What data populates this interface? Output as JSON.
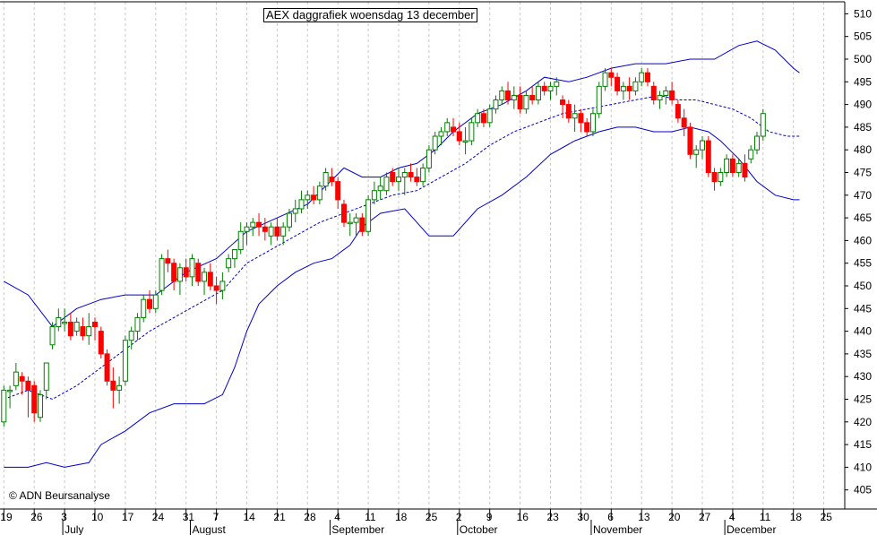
{
  "chart_data": {
    "type": "candlestick",
    "title": "AEX daggrafiek woensdag 13 december",
    "copyright": "© ADN Beursanalyse",
    "ylim": [
      400,
      512
    ],
    "y_ticks": [
      405,
      410,
      415,
      420,
      425,
      430,
      435,
      440,
      445,
      450,
      455,
      460,
      465,
      470,
      475,
      480,
      485,
      490,
      495,
      500,
      505,
      510
    ],
    "x_range": [
      0,
      131
    ],
    "week_ticks": [
      {
        "i": 0,
        "label": "19"
      },
      {
        "i": 5,
        "label": "26"
      },
      {
        "i": 10,
        "label": "3"
      },
      {
        "i": 15,
        "label": "10"
      },
      {
        "i": 20,
        "label": "17"
      },
      {
        "i": 25,
        "label": "24"
      },
      {
        "i": 30,
        "label": "31"
      },
      {
        "i": 35,
        "label": "7"
      },
      {
        "i": 40,
        "label": "14"
      },
      {
        "i": 45,
        "label": "21"
      },
      {
        "i": 50,
        "label": "28"
      },
      {
        "i": 55,
        "label": "4"
      },
      {
        "i": 60,
        "label": "11"
      },
      {
        "i": 65,
        "label": "18"
      },
      {
        "i": 70,
        "label": "25"
      },
      {
        "i": 75,
        "label": "2"
      },
      {
        "i": 80,
        "label": "9"
      },
      {
        "i": 85,
        "label": "16"
      },
      {
        "i": 90,
        "label": "23"
      },
      {
        "i": 95,
        "label": "30"
      },
      {
        "i": 100,
        "label": "6"
      },
      {
        "i": 105,
        "label": "13"
      },
      {
        "i": 110,
        "label": "20"
      },
      {
        "i": 115,
        "label": "27"
      },
      {
        "i": 120,
        "label": "4"
      },
      {
        "i": 125,
        "label": "11"
      },
      {
        "i": 130,
        "label": "18"
      },
      {
        "i": 135,
        "label": "25"
      }
    ],
    "months": [
      {
        "i": 10,
        "label": "July"
      },
      {
        "i": 31,
        "label": "August"
      },
      {
        "i": 54,
        "label": "September"
      },
      {
        "i": 75,
        "label": "October"
      },
      {
        "i": 97,
        "label": "November"
      },
      {
        "i": 119,
        "label": "December"
      }
    ],
    "candles": [
      [
        420,
        428,
        419,
        427
      ],
      [
        427,
        428,
        423,
        427
      ],
      [
        428,
        433,
        427,
        431
      ],
      [
        430,
        431,
        426,
        429
      ],
      [
        429,
        430,
        421,
        427
      ],
      [
        428,
        429,
        420,
        422
      ],
      [
        421,
        427,
        420,
        426
      ],
      [
        427,
        433,
        425,
        433
      ],
      [
        437,
        442,
        436,
        441
      ],
      [
        441,
        445,
        440,
        443
      ],
      [
        442,
        445,
        440,
        442
      ],
      [
        442,
        444,
        438,
        439
      ],
      [
        440,
        443,
        439,
        442
      ],
      [
        441,
        443,
        438,
        439
      ],
      [
        439,
        444,
        437,
        441
      ],
      [
        442,
        443,
        438,
        441
      ],
      [
        440,
        441,
        434,
        435
      ],
      [
        435,
        436,
        428,
        429
      ],
      [
        429,
        432,
        423,
        427
      ],
      [
        427,
        430,
        424,
        428
      ],
      [
        429,
        439,
        428,
        438
      ],
      [
        438,
        441,
        436,
        440
      ],
      [
        440,
        444,
        438,
        443
      ],
      [
        443,
        448,
        442,
        447
      ],
      [
        447,
        449,
        444,
        445
      ],
      [
        445,
        449,
        444,
        448
      ],
      [
        449,
        457,
        448,
        456
      ],
      [
        456,
        458,
        453,
        455
      ],
      [
        455,
        456,
        449,
        451
      ],
      [
        451,
        455,
        448,
        454
      ],
      [
        454,
        456,
        451,
        452
      ],
      [
        452,
        457,
        450,
        456
      ],
      [
        455,
        456,
        450,
        451
      ],
      [
        451,
        454,
        448,
        453
      ],
      [
        453,
        455,
        449,
        450
      ],
      [
        450,
        452,
        446,
        449
      ],
      [
        449,
        453,
        447,
        451
      ],
      [
        454,
        457,
        453,
        456
      ],
      [
        456,
        458,
        454,
        458
      ],
      [
        458,
        464,
        457,
        462
      ],
      [
        462,
        464,
        459,
        463
      ],
      [
        463,
        465,
        461,
        464
      ],
      [
        464,
        466,
        461,
        463
      ],
      [
        463,
        465,
        460,
        462
      ],
      [
        461,
        464,
        459,
        463
      ],
      [
        463,
        465,
        460,
        461
      ],
      [
        461,
        464,
        459,
        463
      ],
      [
        463,
        467,
        462,
        466
      ],
      [
        466,
        469,
        464,
        467
      ],
      [
        467,
        471,
        466,
        469
      ],
      [
        469,
        471,
        467,
        470
      ],
      [
        470,
        472,
        468,
        469
      ],
      [
        469,
        473,
        468,
        472
      ],
      [
        472,
        476,
        471,
        475
      ],
      [
        474,
        476,
        472,
        473
      ],
      [
        473,
        474,
        467,
        469
      ],
      [
        468,
        469,
        463,
        464
      ],
      [
        464,
        466,
        461,
        464
      ],
      [
        464,
        466,
        461,
        465
      ],
      [
        465,
        466,
        461,
        462
      ],
      [
        462,
        470,
        461,
        469
      ],
      [
        469,
        473,
        468,
        471
      ],
      [
        471,
        474,
        469,
        472
      ],
      [
        471,
        475,
        470,
        474
      ],
      [
        475,
        476,
        472,
        473
      ],
      [
        473,
        476,
        471,
        474
      ],
      [
        474,
        476,
        470,
        475
      ],
      [
        475,
        477,
        473,
        474
      ],
      [
        474,
        476,
        472,
        473
      ],
      [
        473,
        477,
        472,
        476
      ],
      [
        476,
        481,
        475,
        480
      ],
      [
        480,
        484,
        479,
        483
      ],
      [
        483,
        485,
        481,
        484
      ],
      [
        484,
        487,
        483,
        486
      ],
      [
        485,
        487,
        483,
        484
      ],
      [
        484,
        486,
        481,
        482
      ],
      [
        482,
        485,
        479,
        482
      ],
      [
        482,
        487,
        481,
        486
      ],
      [
        486,
        489,
        485,
        488
      ],
      [
        488,
        489,
        485,
        486
      ],
      [
        486,
        490,
        485,
        489
      ],
      [
        489,
        492,
        488,
        491
      ],
      [
        491,
        494,
        490,
        493
      ],
      [
        493,
        495,
        490,
        491
      ],
      [
        491,
        494,
        489,
        492
      ],
      [
        492,
        494,
        488,
        489
      ],
      [
        489,
        493,
        488,
        492
      ],
      [
        492,
        494,
        490,
        491
      ],
      [
        491,
        495,
        490,
        494
      ],
      [
        494,
        495,
        492,
        493
      ],
      [
        493,
        495,
        491,
        494
      ],
      [
        494,
        496,
        492,
        495
      ],
      [
        491,
        492,
        487,
        490
      ],
      [
        490,
        491,
        486,
        487
      ],
      [
        487,
        490,
        484,
        488
      ],
      [
        488,
        489,
        484,
        486
      ],
      [
        486,
        487,
        483,
        484
      ],
      [
        484,
        489,
        483,
        488
      ],
      [
        488,
        495,
        487,
        494
      ],
      [
        494,
        498,
        493,
        497
      ],
      [
        497,
        498,
        494,
        496
      ],
      [
        496,
        497,
        492,
        493
      ],
      [
        493,
        495,
        491,
        494
      ],
      [
        494,
        496,
        491,
        493
      ],
      [
        493,
        496,
        492,
        495
      ],
      [
        495,
        498,
        494,
        497
      ],
      [
        497,
        498,
        494,
        495
      ],
      [
        494,
        495,
        490,
        491
      ],
      [
        491,
        493,
        489,
        492
      ],
      [
        492,
        494,
        490,
        493
      ],
      [
        493,
        495,
        490,
        491
      ],
      [
        490,
        491,
        486,
        487
      ],
      [
        487,
        489,
        483,
        485
      ],
      [
        485,
        486,
        478,
        479
      ],
      [
        479,
        481,
        476,
        480
      ],
      [
        480,
        483,
        478,
        482
      ],
      [
        482,
        483,
        474,
        475
      ],
      [
        475,
        476,
        471,
        473
      ],
      [
        473,
        476,
        472,
        475
      ],
      [
        475,
        479,
        474,
        478
      ],
      [
        478,
        479,
        474,
        475
      ],
      [
        475,
        478,
        474,
        477
      ],
      [
        477,
        479,
        473,
        474
      ],
      [
        478,
        481,
        477,
        480
      ],
      [
        480,
        484,
        479,
        483
      ],
      [
        483,
        489,
        482,
        488
      ]
    ],
    "bollinger_upper": [
      [
        0,
        451
      ],
      [
        4,
        448
      ],
      [
        8,
        441
      ],
      [
        12,
        445
      ],
      [
        16,
        447
      ],
      [
        20,
        448
      ],
      [
        25,
        448
      ],
      [
        30,
        453
      ],
      [
        35,
        456
      ],
      [
        40,
        462
      ],
      [
        45,
        465
      ],
      [
        50,
        468
      ],
      [
        53,
        472
      ],
      [
        56,
        476
      ],
      [
        59,
        474
      ],
      [
        62,
        474
      ],
      [
        65,
        476
      ],
      [
        68,
        477
      ],
      [
        71,
        480
      ],
      [
        74,
        484
      ],
      [
        78,
        488
      ],
      [
        82,
        490
      ],
      [
        86,
        493
      ],
      [
        89,
        496
      ],
      [
        93,
        495
      ],
      [
        96,
        496
      ],
      [
        100,
        498
      ],
      [
        104,
        499
      ],
      [
        109,
        499
      ],
      [
        113,
        500
      ],
      [
        117,
        500
      ],
      [
        121,
        503
      ],
      [
        124,
        504
      ],
      [
        127,
        502
      ],
      [
        130,
        498
      ],
      [
        131,
        497
      ]
    ],
    "bollinger_mid": [
      [
        0,
        425
      ],
      [
        4,
        427
      ],
      [
        8,
        425
      ],
      [
        12,
        428
      ],
      [
        16,
        432
      ],
      [
        20,
        436
      ],
      [
        24,
        440
      ],
      [
        28,
        443
      ],
      [
        32,
        446
      ],
      [
        36,
        449
      ],
      [
        40,
        455
      ],
      [
        44,
        458
      ],
      [
        48,
        461
      ],
      [
        52,
        464
      ],
      [
        56,
        466
      ],
      [
        60,
        468
      ],
      [
        64,
        470
      ],
      [
        68,
        471
      ],
      [
        72,
        474
      ],
      [
        76,
        477
      ],
      [
        80,
        481
      ],
      [
        84,
        484
      ],
      [
        88,
        486
      ],
      [
        92,
        488
      ],
      [
        96,
        489
      ],
      [
        100,
        490
      ],
      [
        104,
        491
      ],
      [
        108,
        492
      ],
      [
        111,
        491
      ],
      [
        114,
        491
      ],
      [
        117,
        490
      ],
      [
        120,
        489
      ],
      [
        123,
        487
      ],
      [
        126,
        484
      ],
      [
        129,
        483
      ],
      [
        131,
        483
      ]
    ],
    "bollinger_lower": [
      [
        0,
        410
      ],
      [
        4,
        410
      ],
      [
        7,
        411
      ],
      [
        10,
        410
      ],
      [
        14,
        411
      ],
      [
        16,
        415
      ],
      [
        20,
        418
      ],
      [
        24,
        422
      ],
      [
        28,
        424
      ],
      [
        33,
        424
      ],
      [
        36,
        426
      ],
      [
        38,
        432
      ],
      [
        40,
        440
      ],
      [
        42,
        446
      ],
      [
        45,
        450
      ],
      [
        48,
        453
      ],
      [
        51,
        455
      ],
      [
        54,
        456
      ],
      [
        57,
        459
      ],
      [
        59,
        463
      ],
      [
        62,
        466
      ],
      [
        66,
        467
      ],
      [
        70,
        461
      ],
      [
        74,
        461
      ],
      [
        78,
        467
      ],
      [
        82,
        470
      ],
      [
        86,
        474
      ],
      [
        90,
        479
      ],
      [
        94,
        482
      ],
      [
        98,
        484
      ],
      [
        101,
        485
      ],
      [
        104,
        485
      ],
      [
        107,
        484
      ],
      [
        110,
        484
      ],
      [
        113,
        485
      ],
      [
        116,
        484
      ],
      [
        118,
        482
      ],
      [
        121,
        478
      ],
      [
        124,
        473
      ],
      [
        127,
        470
      ],
      [
        130,
        469
      ],
      [
        131,
        469
      ]
    ],
    "colors": {
      "up": "#008000",
      "down": "#ff0000",
      "band": "#0000cc",
      "grid": "#c8c8c8",
      "axis": "#000000"
    }
  }
}
